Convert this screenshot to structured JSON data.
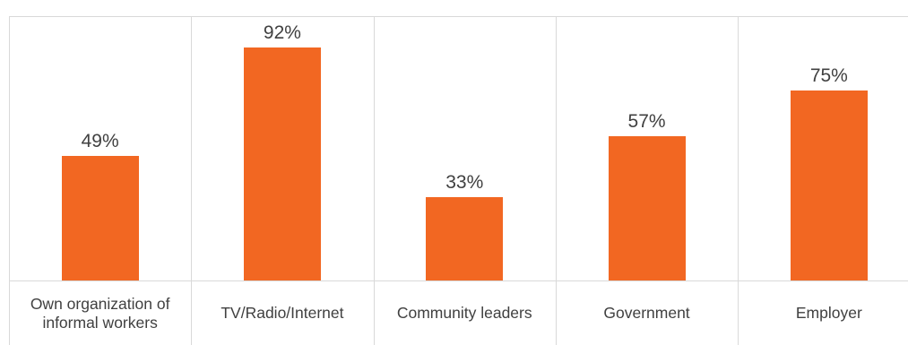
{
  "chart_data": {
    "type": "bar",
    "categories": [
      "Own organization of informal workers",
      "TV/Radio/Internet",
      "Community leaders",
      "Government",
      "Employer"
    ],
    "values": [
      49,
      92,
      33,
      57,
      75
    ],
    "value_labels": [
      "49%",
      "92%",
      "33%",
      "57%",
      "75%"
    ],
    "color": "#f26722",
    "ylim": [
      0,
      100
    ]
  }
}
